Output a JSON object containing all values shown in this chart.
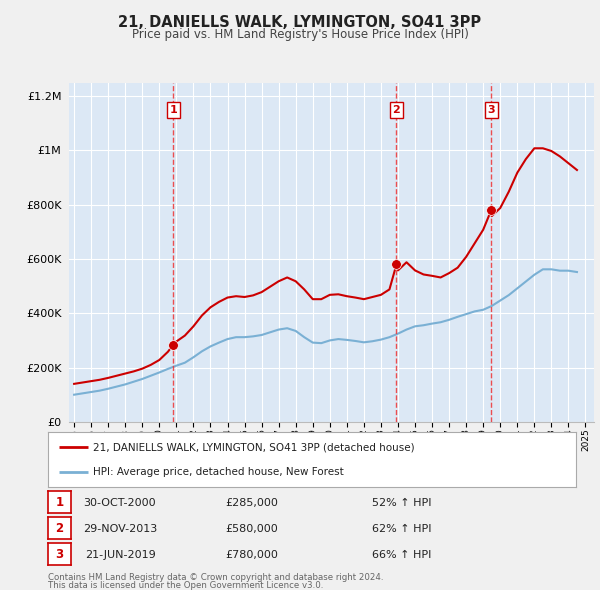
{
  "title": "21, DANIELLS WALK, LYMINGTON, SO41 3PP",
  "subtitle": "Price paid vs. HM Land Registry's House Price Index (HPI)",
  "plot_bg_color": "#dce8f5",
  "grid_color": "#ffffff",
  "ylim": [
    0,
    1250000
  ],
  "yticks": [
    0,
    200000,
    400000,
    600000,
    800000,
    1000000,
    1200000
  ],
  "ytick_labels": [
    "£0",
    "£200K",
    "£400K",
    "£600K",
    "£800K",
    "£1M",
    "£1.2M"
  ],
  "xlim_start": 1994.7,
  "xlim_end": 2025.5,
  "sale_color": "#cc0000",
  "hpi_color": "#7ab0d4",
  "sale_label": "21, DANIELLS WALK, LYMINGTON, SO41 3PP (detached house)",
  "hpi_label": "HPI: Average price, detached house, New Forest",
  "vline_color": "#ee3333",
  "marker_color": "#cc0000",
  "marker_size": 7,
  "transactions": [
    {
      "num": 1,
      "date": "30-OCT-2000",
      "price": 285000,
      "pct": "52%",
      "year": 2000.83
    },
    {
      "num": 2,
      "date": "29-NOV-2013",
      "price": 580000,
      "pct": "62%",
      "year": 2013.91
    },
    {
      "num": 3,
      "date": "21-JUN-2019",
      "price": 780000,
      "pct": "66%",
      "year": 2019.47
    }
  ],
  "footnote1": "Contains HM Land Registry data © Crown copyright and database right 2024.",
  "footnote2": "This data is licensed under the Open Government Licence v3.0.",
  "hpi_data_years": [
    1995.0,
    1995.5,
    1996.0,
    1996.5,
    1997.0,
    1997.5,
    1998.0,
    1998.5,
    1999.0,
    1999.5,
    2000.0,
    2000.5,
    2001.0,
    2001.5,
    2002.0,
    2002.5,
    2003.0,
    2003.5,
    2004.0,
    2004.5,
    2005.0,
    2005.5,
    2006.0,
    2006.5,
    2007.0,
    2007.5,
    2008.0,
    2008.5,
    2009.0,
    2009.5,
    2010.0,
    2010.5,
    2011.0,
    2011.5,
    2012.0,
    2012.5,
    2013.0,
    2013.5,
    2014.0,
    2014.5,
    2015.0,
    2015.5,
    2016.0,
    2016.5,
    2017.0,
    2017.5,
    2018.0,
    2018.5,
    2019.0,
    2019.5,
    2020.0,
    2020.5,
    2021.0,
    2021.5,
    2022.0,
    2022.5,
    2023.0,
    2023.5,
    2024.0,
    2024.5
  ],
  "hpi_data_values": [
    100000,
    105000,
    110000,
    115000,
    122000,
    130000,
    138000,
    148000,
    158000,
    170000,
    182000,
    195000,
    207000,
    218000,
    238000,
    260000,
    278000,
    292000,
    305000,
    312000,
    312000,
    315000,
    320000,
    330000,
    340000,
    345000,
    335000,
    312000,
    292000,
    290000,
    300000,
    305000,
    302000,
    298000,
    293000,
    297000,
    303000,
    312000,
    325000,
    340000,
    352000,
    356000,
    362000,
    367000,
    376000,
    387000,
    397000,
    407000,
    413000,
    427000,
    447000,
    467000,
    492000,
    517000,
    542000,
    562000,
    562000,
    557000,
    557000,
    552000
  ],
  "sale_data_years": [
    1995.0,
    1995.5,
    1996.0,
    1996.5,
    1997.0,
    1997.5,
    1998.0,
    1998.5,
    1999.0,
    1999.5,
    2000.0,
    2000.5,
    2000.83,
    2001.0,
    2001.5,
    2002.0,
    2002.5,
    2003.0,
    2003.5,
    2004.0,
    2004.5,
    2005.0,
    2005.5,
    2006.0,
    2006.5,
    2007.0,
    2007.5,
    2008.0,
    2008.5,
    2009.0,
    2009.5,
    2010.0,
    2010.5,
    2011.0,
    2011.5,
    2012.0,
    2012.5,
    2013.0,
    2013.5,
    2013.91,
    2014.0,
    2014.5,
    2015.0,
    2015.5,
    2016.0,
    2016.5,
    2017.0,
    2017.5,
    2018.0,
    2018.5,
    2019.0,
    2019.47,
    2019.5,
    2020.0,
    2020.5,
    2021.0,
    2021.5,
    2022.0,
    2022.5,
    2023.0,
    2023.5,
    2024.0,
    2024.5
  ],
  "sale_data_values": [
    140000,
    145000,
    150000,
    155000,
    162000,
    170000,
    178000,
    186000,
    196000,
    210000,
    228000,
    258000,
    285000,
    296000,
    318000,
    352000,
    392000,
    422000,
    442000,
    458000,
    463000,
    460000,
    466000,
    478000,
    498000,
    518000,
    532000,
    518000,
    488000,
    452000,
    452000,
    468000,
    470000,
    463000,
    458000,
    452000,
    460000,
    468000,
    488000,
    580000,
    558000,
    588000,
    558000,
    543000,
    538000,
    532000,
    548000,
    568000,
    608000,
    658000,
    708000,
    780000,
    758000,
    788000,
    848000,
    918000,
    968000,
    1008000,
    1008000,
    998000,
    978000,
    953000,
    928000
  ]
}
